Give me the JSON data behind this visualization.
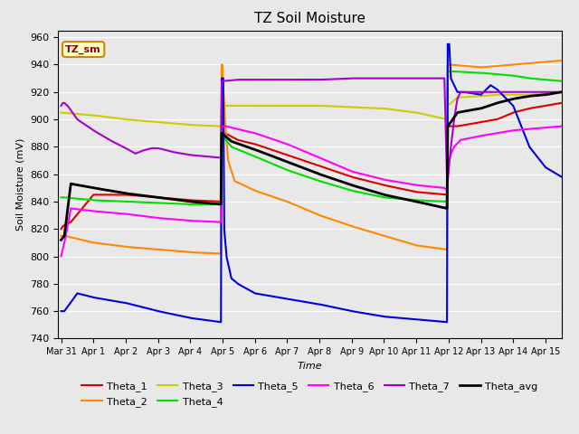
{
  "title": "TZ Soil Moisture",
  "ylabel": "Soil Moisture (mV)",
  "xlabel": "Time",
  "ylim": [
    740,
    965
  ],
  "yticks": [
    740,
    760,
    780,
    800,
    820,
    840,
    860,
    880,
    900,
    920,
    940,
    960
  ],
  "plot_bg_color": "#e8e8e8",
  "annotation_text": "TZ_sm",
  "annotation_color": "#8B0000",
  "annotation_bg": "#ffffcc",
  "colors": {
    "Theta_1": "#dd0000",
    "Theta_2": "#ff8800",
    "Theta_3": "#cccc00",
    "Theta_4": "#00dd00",
    "Theta_5": "#0000dd",
    "Theta_6": "#ff00ff",
    "Theta_7": "#aa00cc",
    "Theta_avg": "#000000"
  },
  "x_tick_labels": [
    "Mar 31",
    "Apr 1",
    "Apr 2",
    "Apr 3",
    "Apr 4",
    "Apr 5",
    "Apr 6",
    "Apr 7",
    "Apr 8",
    "Apr 9",
    "Apr 10",
    "Apr 11",
    "Apr 12",
    "Apr 13",
    "Apr 14",
    "Apr 15"
  ],
  "x_tick_positions": [
    0,
    1,
    2,
    3,
    4,
    5,
    6,
    7,
    8,
    9,
    10,
    11,
    12,
    13,
    14,
    15
  ]
}
